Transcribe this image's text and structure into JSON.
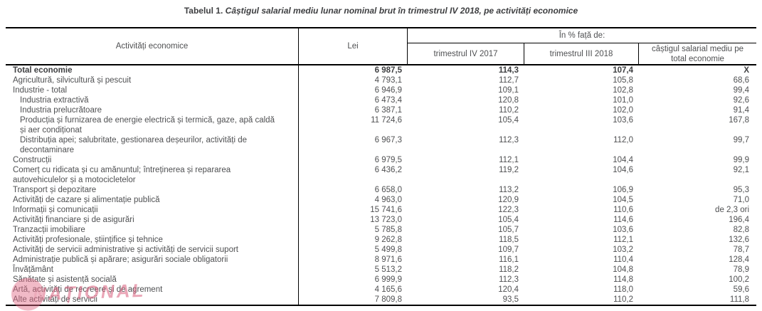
{
  "title": {
    "prefix": "Tabelul 1.",
    "text": "Câștigul salarial mediu lunar nominal brut în trimestrul IV 2018, pe activități economice"
  },
  "table": {
    "col_activities": "Activități economice",
    "col_lei": "Lei",
    "col_group": "În % față de:",
    "col_q4_2017": "trimestrul IV 2017",
    "col_q3_2018": "trimestrul III 2018",
    "col_avg": "câștigul salarial mediu pe total economie",
    "rows": [
      {
        "label": [
          "Total economie"
        ],
        "indent": 0,
        "bold": true,
        "lei": "6 987,5",
        "q4_2017": "114,3",
        "q3_2018": "107,4",
        "vs_total": "X"
      },
      {
        "label": [
          "Agricultură, silvicultură și pescuit"
        ],
        "indent": 0,
        "bold": false,
        "lei": "4 793,1",
        "q4_2017": "112,7",
        "q3_2018": "105,8",
        "vs_total": "68,6"
      },
      {
        "label": [
          "Industrie - total"
        ],
        "indent": 0,
        "bold": false,
        "lei": "6 946,9",
        "q4_2017": "109,1",
        "q3_2018": "102,8",
        "vs_total": "99,4"
      },
      {
        "label": [
          "Industria extractivă"
        ],
        "indent": 1,
        "bold": false,
        "lei": "6 473,4",
        "q4_2017": "120,8",
        "q3_2018": "101,0",
        "vs_total": "92,6"
      },
      {
        "label": [
          "Industria prelucrătoare"
        ],
        "indent": 1,
        "bold": false,
        "lei": "6 387,1",
        "q4_2017": "110,2",
        "q3_2018": "102,0",
        "vs_total": "91,4"
      },
      {
        "label": [
          "Producția și furnizarea de energie electrică și termică, gaze, apă caldă",
          "și aer condiționat"
        ],
        "indent": 1,
        "bold": false,
        "lei": "11 724,6",
        "q4_2017": "105,4",
        "q3_2018": "103,6",
        "vs_total": "167,8"
      },
      {
        "label": [
          "Distribuția apei; salubritate, gestionarea deșeurilor, activități de",
          "decontaminare"
        ],
        "indent": 1,
        "bold": false,
        "lei": "6 967,3",
        "q4_2017": "112,3",
        "q3_2018": "112,0",
        "vs_total": "99,7"
      },
      {
        "label": [
          "Construcții"
        ],
        "indent": 0,
        "bold": false,
        "lei": "6 979,5",
        "q4_2017": "112,1",
        "q3_2018": "104,4",
        "vs_total": "99,9"
      },
      {
        "label": [
          "Comerț cu ridicata și cu amănuntul; întreținerea și repararea",
          "autovehiculelor și a motocicletelor"
        ],
        "indent": 0,
        "bold": false,
        "lei": "6 436,2",
        "q4_2017": "119,2",
        "q3_2018": "104,6",
        "vs_total": "92,1"
      },
      {
        "label": [
          "Transport și depozitare"
        ],
        "indent": 0,
        "bold": false,
        "lei": "6 658,0",
        "q4_2017": "113,2",
        "q3_2018": "106,9",
        "vs_total": "95,3"
      },
      {
        "label": [
          "Activități de cazare și alimentație publică"
        ],
        "indent": 0,
        "bold": false,
        "lei": "4 963,0",
        "q4_2017": "120,9",
        "q3_2018": "104,5",
        "vs_total": "71,0"
      },
      {
        "label": [
          "Informații și comunicații"
        ],
        "indent": 0,
        "bold": false,
        "lei": "15 741,6",
        "q4_2017": "122,3",
        "q3_2018": "110,6",
        "vs_total": "de  2,3 ori"
      },
      {
        "label": [
          "Activități financiare și de asigurări"
        ],
        "indent": 0,
        "bold": false,
        "lei": "13 723,0",
        "q4_2017": "105,4",
        "q3_2018": "114,6",
        "vs_total": "196,4"
      },
      {
        "label": [
          "Tranzacții imobiliare"
        ],
        "indent": 0,
        "bold": false,
        "lei": "5 785,8",
        "q4_2017": "105,7",
        "q3_2018": "103,6",
        "vs_total": "82,8"
      },
      {
        "label": [
          "Activități profesionale, științifice și tehnice"
        ],
        "indent": 0,
        "bold": false,
        "lei": "9 262,8",
        "q4_2017": "118,5",
        "q3_2018": "112,1",
        "vs_total": "132,6"
      },
      {
        "label": [
          "Activități de servicii administrative și activități de servicii suport"
        ],
        "indent": 0,
        "bold": false,
        "lei": "5 499,8",
        "q4_2017": "109,7",
        "q3_2018": "103,2",
        "vs_total": "78,7"
      },
      {
        "label": [
          "Administrație publică și apărare; asigurări sociale obligatorii"
        ],
        "indent": 0,
        "bold": false,
        "lei": "8 971,6",
        "q4_2017": "116,1",
        "q3_2018": "110,4",
        "vs_total": "128,4"
      },
      {
        "label": [
          "Învățământ"
        ],
        "indent": 0,
        "bold": false,
        "lei": "5 513,2",
        "q4_2017": "118,2",
        "q3_2018": "104,8",
        "vs_total": "78,9"
      },
      {
        "label": [
          "Sănătate și asistență socială"
        ],
        "indent": 0,
        "bold": false,
        "lei": "6 999,9",
        "q4_2017": "112,3",
        "q3_2018": "114,8",
        "vs_total": "100,2"
      },
      {
        "label": [
          "Artă, activități de recreere și de agrement"
        ],
        "indent": 0,
        "bold": false,
        "lei": "4 165,6",
        "q4_2017": "120,4",
        "q3_2018": "118,0",
        "vs_total": "59,6"
      },
      {
        "label": [
          "Alte activități de servicii"
        ],
        "indent": 0,
        "bold": false,
        "lei": "7 809,8",
        "q4_2017": "93,5",
        "q3_2018": "110,2",
        "vs_total": "111,8"
      }
    ]
  },
  "watermark": {
    "text": "NAȚIONAL",
    "color": "#d95f7d"
  }
}
